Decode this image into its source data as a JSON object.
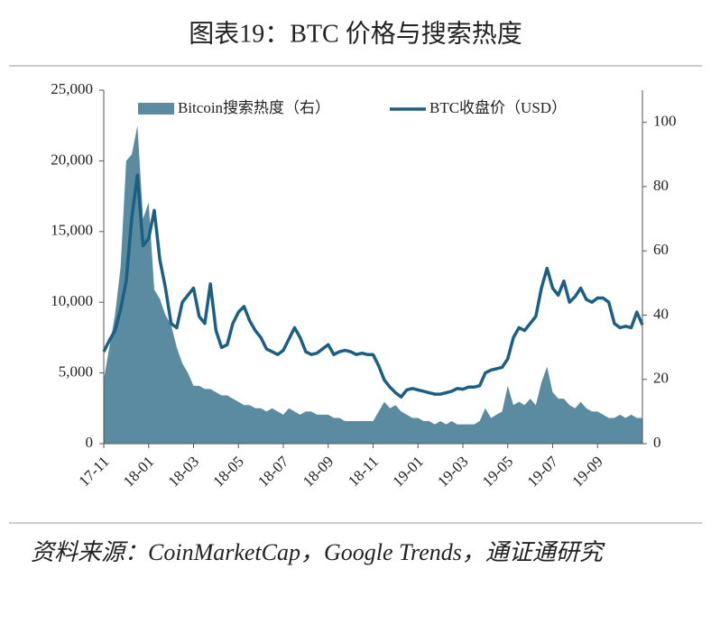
{
  "chart_data": {
    "type": "area-line",
    "title": "图表19：BTC 价格与搜索热度",
    "source": "资料来源：CoinMarketCap，Google Trends，通证通研究",
    "categories": [
      "17-11",
      null,
      null,
      null,
      null,
      null,
      null,
      null,
      "18-01",
      null,
      null,
      null,
      null,
      null,
      null,
      null,
      "18-03",
      null,
      null,
      null,
      null,
      null,
      null,
      null,
      "18-05",
      null,
      null,
      null,
      null,
      null,
      null,
      null,
      "18-07",
      null,
      null,
      null,
      null,
      null,
      null,
      null,
      "18-09",
      null,
      null,
      null,
      null,
      null,
      null,
      null,
      "18-11",
      null,
      null,
      null,
      null,
      null,
      null,
      null,
      "19-01",
      null,
      null,
      null,
      null,
      null,
      null,
      null,
      "19-03",
      null,
      null,
      null,
      null,
      null,
      null,
      null,
      "19-05",
      null,
      null,
      null,
      null,
      null,
      null,
      null,
      "19-07",
      null,
      null,
      null,
      null,
      null,
      null,
      null,
      "19-09",
      null,
      null,
      null,
      null,
      null,
      null,
      null,
      null
    ],
    "series": [
      {
        "name": "Bitcoin搜索热度（右）",
        "color": "#5a8ba0",
        "axis": "y2",
        "kind": "area",
        "values": [
          20,
          30,
          40,
          55,
          88,
          90,
          99,
          70,
          75,
          48,
          45,
          40,
          37,
          30,
          25,
          22,
          18,
          18,
          17,
          17,
          16,
          15,
          15,
          14,
          13,
          12,
          12,
          11,
          11,
          10,
          11,
          10,
          9,
          11,
          10,
          9,
          10,
          10,
          9,
          9,
          9,
          8,
          8,
          7,
          7,
          7,
          7,
          7,
          7,
          10,
          13,
          11,
          12,
          10,
          9,
          8,
          8,
          7,
          7,
          6,
          7,
          6,
          7,
          6,
          6,
          6,
          6,
          7,
          11,
          8,
          9,
          10,
          18,
          12,
          13,
          12,
          14,
          12,
          19,
          24,
          16,
          14,
          14,
          12,
          11,
          13,
          11,
          10,
          10,
          9,
          8,
          8,
          9,
          8,
          9,
          8,
          8
        ]
      },
      {
        "name": "BTC收盘价（USD）",
        "color": "#1b5f84",
        "axis": "y",
        "kind": "line",
        "values": [
          6500,
          7300,
          8000,
          9500,
          11500,
          16000,
          19000,
          14000,
          14500,
          16500,
          13000,
          11000,
          8500,
          8200,
          10000,
          10500,
          11000,
          9000,
          8500,
          11300,
          8000,
          6800,
          7000,
          8500,
          9300,
          9700,
          8700,
          8000,
          7500,
          6700,
          6500,
          6300,
          6600,
          7400,
          8200,
          7500,
          6500,
          6300,
          6400,
          6700,
          7000,
          6300,
          6500,
          6600,
          6500,
          6300,
          6400,
          6300,
          6300,
          5500,
          4500,
          4000,
          3600,
          3300,
          3800,
          3900,
          3800,
          3700,
          3600,
          3500,
          3500,
          3600,
          3700,
          3900,
          3850,
          4000,
          4000,
          4100,
          5000,
          5200,
          5300,
          5400,
          6000,
          7500,
          8200,
          8000,
          8500,
          9000,
          11000,
          12400,
          11000,
          10500,
          11500,
          10000,
          10400,
          11000,
          10200,
          10000,
          10300,
          10300,
          10000,
          8500,
          8200,
          8300,
          8200,
          9300,
          8400
        ]
      }
    ],
    "ylim": [
      0,
      25000
    ],
    "yticks": [
      0,
      {
        "value": 5000,
        "label": "5,000"
      },
      {
        "value": 10000,
        "label": "10,000"
      },
      {
        "value": 15000,
        "label": "15,000"
      },
      {
        "value": 20000,
        "label": "20,000"
      },
      {
        "value": 25000,
        "label": "25,000"
      }
    ],
    "y2lim": [
      0,
      110
    ],
    "y2ticks": [
      0,
      20,
      40,
      60,
      80,
      100
    ]
  }
}
